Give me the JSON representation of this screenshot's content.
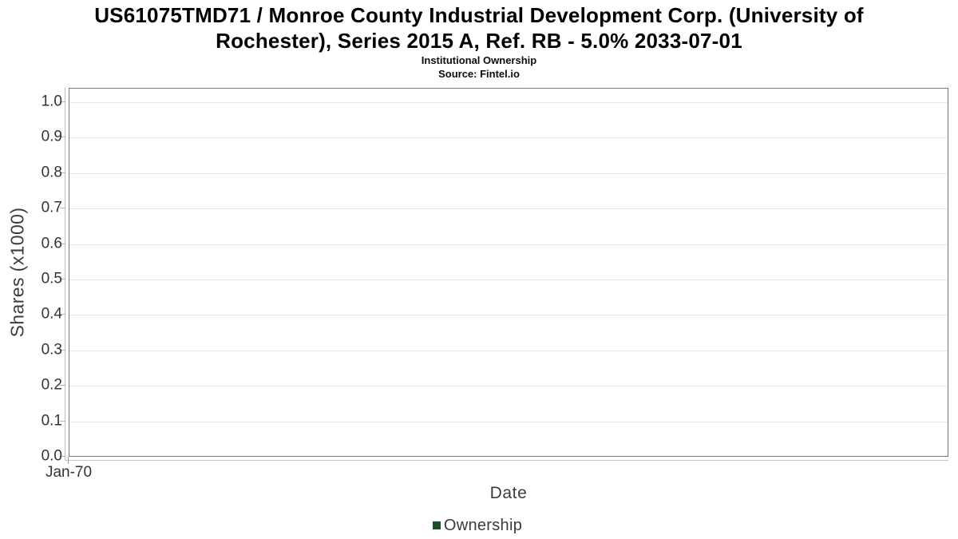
{
  "chart_data": {
    "type": "line",
    "title": "US61075TMD71 / Monroe County Industrial Development Corp. (University of Rochester), Series 2015 A, Ref. RB - 5.0% 2033-07-01",
    "subtitle": "Institutional Ownership",
    "source": "Source: Fintel.io",
    "xlabel": "Date",
    "ylabel": "Shares (x1000)",
    "x_ticks": [
      "Jan-70"
    ],
    "y_ticks": [
      0.0,
      0.1,
      0.2,
      0.3,
      0.4,
      0.5,
      0.6,
      0.7,
      0.8,
      0.9,
      1.0
    ],
    "ylim": [
      0.0,
      1.04
    ],
    "xlim_labels": [
      "Jan-70"
    ],
    "grid": "horizontal",
    "legend_position": "bottom",
    "series": [
      {
        "name": "Ownership",
        "color": "#1d4d2a",
        "x": [],
        "values": []
      }
    ]
  }
}
